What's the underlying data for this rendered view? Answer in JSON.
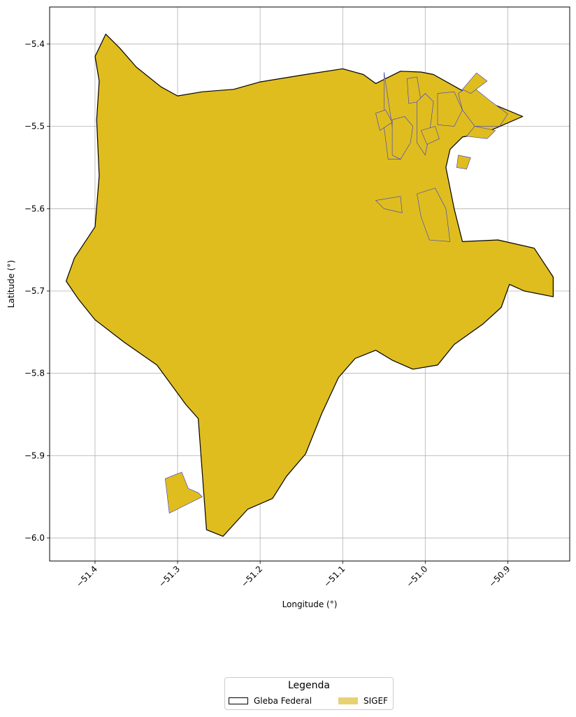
{
  "chart_data": {
    "type": "map",
    "xlabel": "Longitude (°)",
    "ylabel": "Latitude (°)",
    "xlim": [
      -51.455,
      -50.825
    ],
    "ylim": [
      -6.028,
      -5.355
    ],
    "xticks": [
      -51.4,
      -51.3,
      -51.2,
      -51.1,
      -51.0,
      -50.9
    ],
    "xtick_labels": [
      "−51.4",
      "−51.3",
      "−51.2",
      "−51.1",
      "−51.0",
      "−50.9"
    ],
    "yticks": [
      -5.4,
      -5.5,
      -5.6,
      -5.7,
      -5.8,
      -5.9,
      -6.0
    ],
    "ytick_labels": [
      "−5.4",
      "−5.5",
      "−5.6",
      "−5.7",
      "−5.8",
      "−5.9",
      "−6.0"
    ],
    "grid": true,
    "legend": {
      "title": "Legenda",
      "placement": "bottom-center",
      "entries": [
        {
          "label": "Gleba Federal",
          "style": "outline",
          "edge_color": "#000000"
        },
        {
          "label": "SIGEF",
          "style": "fill",
          "color": "#e8d173"
        }
      ]
    },
    "colors": {
      "fill": "#dfbd1f",
      "gleba_edge": "#000000",
      "sigef_edge": "#3a3ad0"
    },
    "gleba_federal": [
      [
        -51.387,
        -5.388
      ],
      [
        -51.37,
        -5.405
      ],
      [
        -51.35,
        -5.428
      ],
      [
        -51.32,
        -5.452
      ],
      [
        -51.3,
        -5.463
      ],
      [
        -51.27,
        -5.458
      ],
      [
        -51.232,
        -5.455
      ],
      [
        -51.2,
        -5.446
      ],
      [
        -51.145,
        -5.437
      ],
      [
        -51.1,
        -5.43
      ],
      [
        -51.075,
        -5.437
      ],
      [
        -51.06,
        -5.448
      ],
      [
        -51.05,
        -5.443
      ],
      [
        -51.03,
        -5.433
      ],
      [
        -51.005,
        -5.434
      ],
      [
        -50.99,
        -5.437
      ],
      [
        -50.958,
        -5.455
      ],
      [
        -50.935,
        -5.466
      ],
      [
        -50.882,
        -5.488
      ],
      [
        -50.928,
        -5.508
      ],
      [
        -50.955,
        -5.513
      ],
      [
        -50.97,
        -5.528
      ],
      [
        -50.975,
        -5.55
      ],
      [
        -50.965,
        -5.6
      ],
      [
        -50.955,
        -5.64
      ],
      [
        -50.912,
        -5.638
      ],
      [
        -50.868,
        -5.648
      ],
      [
        -50.845,
        -5.683
      ],
      [
        -50.845,
        -5.707
      ],
      [
        -50.88,
        -5.7
      ],
      [
        -50.898,
        -5.692
      ],
      [
        -50.908,
        -5.72
      ],
      [
        -50.93,
        -5.74
      ],
      [
        -50.965,
        -5.765
      ],
      [
        -50.985,
        -5.79
      ],
      [
        -51.015,
        -5.795
      ],
      [
        -51.04,
        -5.784
      ],
      [
        -51.06,
        -5.772
      ],
      [
        -51.085,
        -5.782
      ],
      [
        -51.105,
        -5.805
      ],
      [
        -51.125,
        -5.848
      ],
      [
        -51.145,
        -5.898
      ],
      [
        -51.168,
        -5.925
      ],
      [
        -51.185,
        -5.952
      ],
      [
        -51.215,
        -5.965
      ],
      [
        -51.245,
        -5.998
      ],
      [
        -51.265,
        -5.99
      ],
      [
        -51.275,
        -5.855
      ],
      [
        -51.29,
        -5.838
      ],
      [
        -51.325,
        -5.79
      ],
      [
        -51.365,
        -5.762
      ],
      [
        -51.4,
        -5.735
      ],
      [
        -51.42,
        -5.71
      ],
      [
        -51.435,
        -5.688
      ],
      [
        -51.425,
        -5.66
      ],
      [
        -51.4,
        -5.622
      ],
      [
        -51.395,
        -5.56
      ],
      [
        -51.398,
        -5.492
      ],
      [
        -51.395,
        -5.445
      ],
      [
        -51.4,
        -5.415
      ]
    ],
    "sigef_parcels": [
      [
        [
          -51.315,
          -5.928
        ],
        [
          -51.295,
          -5.92
        ],
        [
          -51.287,
          -5.94
        ],
        [
          -51.275,
          -5.945
        ],
        [
          -51.27,
          -5.95
        ],
        [
          -51.31,
          -5.97
        ]
      ],
      [
        [
          -51.05,
          -5.434
        ],
        [
          -51.04,
          -5.5
        ],
        [
          -51.035,
          -5.52
        ],
        [
          -51.03,
          -5.54
        ],
        [
          -51.045,
          -5.54
        ],
        [
          -51.05,
          -5.5
        ]
      ],
      [
        [
          -51.04,
          -5.492
        ],
        [
          -51.025,
          -5.488
        ],
        [
          -51.015,
          -5.5
        ],
        [
          -51.018,
          -5.52
        ],
        [
          -51.03,
          -5.54
        ],
        [
          -51.04,
          -5.535
        ]
      ],
      [
        [
          -51.06,
          -5.484
        ],
        [
          -51.048,
          -5.48
        ],
        [
          -51.04,
          -5.495
        ],
        [
          -51.055,
          -5.505
        ]
      ],
      [
        [
          -51.022,
          -5.442
        ],
        [
          -51.01,
          -5.44
        ],
        [
          -51.005,
          -5.47
        ],
        [
          -51.02,
          -5.472
        ]
      ],
      [
        [
          -51.01,
          -5.47
        ],
        [
          -51.0,
          -5.46
        ],
        [
          -50.99,
          -5.47
        ],
        [
          -50.995,
          -5.51
        ],
        [
          -51.0,
          -5.535
        ],
        [
          -51.01,
          -5.52
        ]
      ],
      [
        [
          -51.005,
          -5.505
        ],
        [
          -50.988,
          -5.5
        ],
        [
          -50.983,
          -5.515
        ],
        [
          -50.998,
          -5.522
        ]
      ],
      [
        [
          -50.985,
          -5.46
        ],
        [
          -50.965,
          -5.458
        ],
        [
          -50.955,
          -5.48
        ],
        [
          -50.965,
          -5.5
        ],
        [
          -50.985,
          -5.498
        ]
      ],
      [
        [
          -50.96,
          -5.46
        ],
        [
          -50.945,
          -5.45
        ],
        [
          -50.92,
          -5.47
        ],
        [
          -50.9,
          -5.485
        ],
        [
          -50.91,
          -5.5
        ],
        [
          -50.94,
          -5.5
        ],
        [
          -50.955,
          -5.48
        ]
      ],
      [
        [
          -50.94,
          -5.5
        ],
        [
          -50.915,
          -5.505
        ],
        [
          -50.925,
          -5.515
        ],
        [
          -50.95,
          -5.512
        ]
      ],
      [
        [
          -50.96,
          -5.535
        ],
        [
          -50.945,
          -5.538
        ],
        [
          -50.95,
          -5.552
        ],
        [
          -50.962,
          -5.55
        ]
      ],
      [
        [
          -51.06,
          -5.59
        ],
        [
          -51.03,
          -5.585
        ],
        [
          -51.028,
          -5.605
        ],
        [
          -51.05,
          -5.6
        ]
      ],
      [
        [
          -51.01,
          -5.582
        ],
        [
          -50.988,
          -5.575
        ],
        [
          -50.975,
          -5.6
        ],
        [
          -50.97,
          -5.64
        ],
        [
          -50.995,
          -5.638
        ],
        [
          -51.005,
          -5.61
        ]
      ],
      [
        [
          -50.955,
          -5.455
        ],
        [
          -50.938,
          -5.435
        ],
        [
          -50.925,
          -5.445
        ],
        [
          -50.945,
          -5.46
        ]
      ]
    ]
  }
}
